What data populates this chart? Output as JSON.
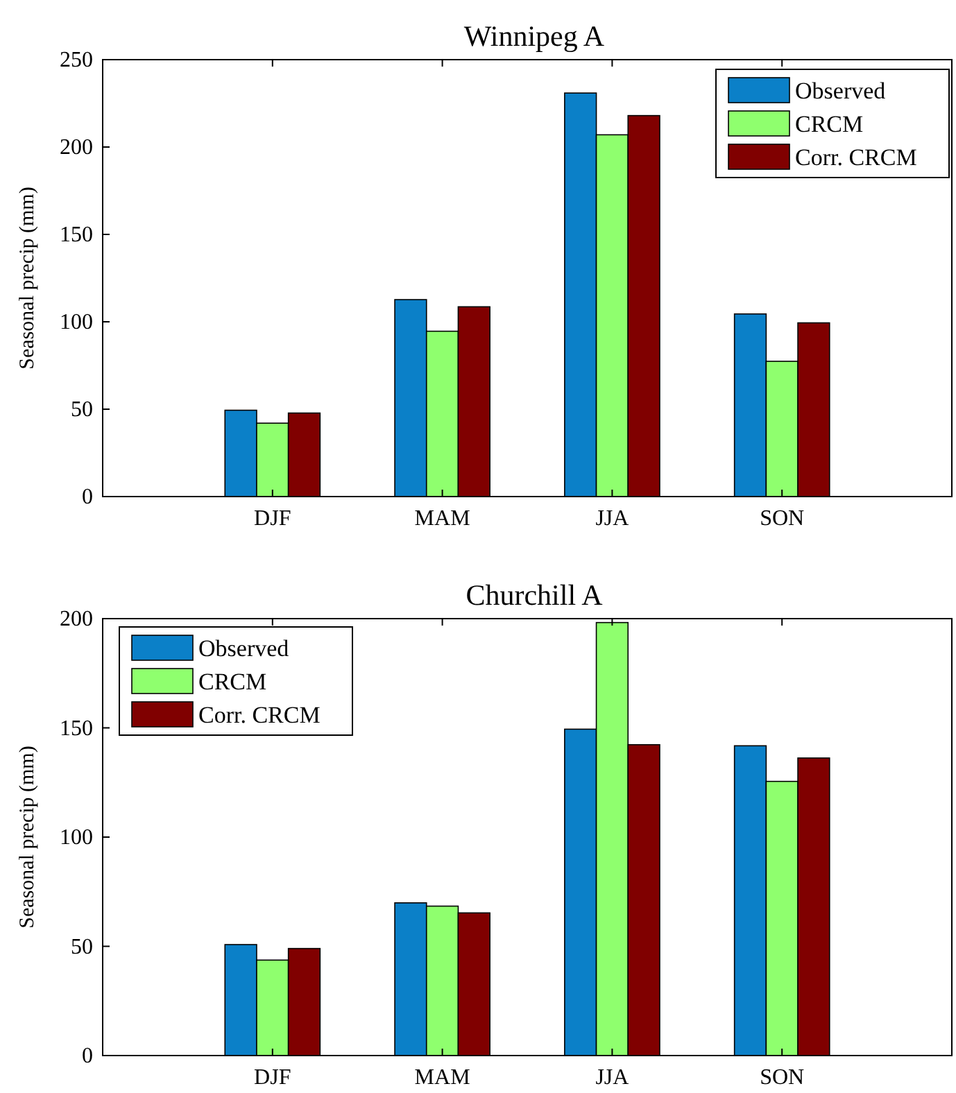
{
  "chart_data": [
    {
      "type": "bar",
      "title": "Winnipeg A",
      "ylabel": "Seasonal precip (mm)",
      "categories": [
        "DJF",
        "MAM",
        "JJA",
        "SON"
      ],
      "ylim": [
        0,
        250
      ],
      "yticks": [
        0,
        50,
        100,
        150,
        200,
        250
      ],
      "legend": "top right",
      "grid": false,
      "series": [
        {
          "name": "Observed",
          "color": "#0b80c8",
          "values": [
            49.4,
            112.7,
            230.9,
            104.5
          ]
        },
        {
          "name": "CRCM",
          "color": "#8fff6e",
          "values": [
            42,
            94.6,
            207,
            77.4
          ]
        },
        {
          "name": "Corr. CRCM",
          "color": "#800000",
          "values": [
            47.8,
            108.6,
            218,
            99.4
          ]
        }
      ]
    },
    {
      "type": "bar",
      "title": "Churchill A",
      "ylabel": "Seasonal precip (mm)",
      "categories": [
        "DJF",
        "MAM",
        "JJA",
        "SON"
      ],
      "ylim": [
        0,
        200
      ],
      "yticks": [
        0,
        50,
        100,
        150,
        200
      ],
      "legend": "top left",
      "grid": false,
      "series": [
        {
          "name": "Observed",
          "color": "#0b80c8",
          "values": [
            50.8,
            69.9,
            149.4,
            141.8
          ]
        },
        {
          "name": "CRCM",
          "color": "#8fff6e",
          "values": [
            43.7,
            68.4,
            198.2,
            125.5
          ]
        },
        {
          "name": "Corr. CRCM",
          "color": "#800000",
          "values": [
            49,
            65.3,
            142.3,
            136.2
          ]
        }
      ]
    }
  ]
}
